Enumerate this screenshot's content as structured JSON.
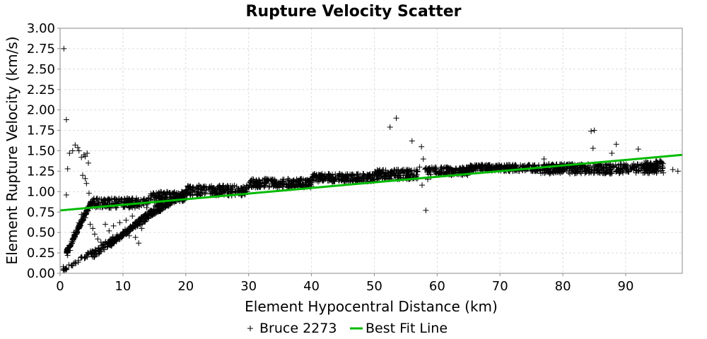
{
  "chart_data": {
    "type": "scatter",
    "title": "Rupture Velocity Scatter",
    "xlabel": "Element Hypocentral Distance (km)",
    "ylabel": "Element Rupture Velocity (km/s)",
    "xlim": [
      0,
      99
    ],
    "ylim": [
      0,
      3.0
    ],
    "x_ticks": [
      0,
      10,
      20,
      30,
      40,
      50,
      60,
      70,
      80,
      90
    ],
    "y_ticks": [
      0.0,
      0.25,
      0.5,
      0.75,
      1.0,
      1.25,
      1.5,
      1.75,
      2.0,
      2.25,
      2.5,
      2.75,
      3.0
    ],
    "x_tick_labels": [
      "0",
      "10",
      "20",
      "30",
      "40",
      "50",
      "60",
      "70",
      "80",
      "90"
    ],
    "y_tick_labels": [
      "0.00",
      "0.25",
      "0.50",
      "0.75",
      "1.00",
      "1.25",
      "1.50",
      "1.75",
      "2.00",
      "2.25",
      "2.50",
      "2.75",
      "3.00"
    ],
    "grid": true,
    "legend_position": "bottom",
    "series": [
      {
        "name": "Bruce 2273",
        "kind": "scatter",
        "marker": "plus",
        "color": "#000000",
        "points": [
          [
            0.6,
            2.75
          ],
          [
            1.0,
            1.88
          ],
          [
            1.2,
            1.28
          ],
          [
            1.0,
            0.96
          ],
          [
            0.5,
            0.08
          ],
          [
            1.0,
            0.05
          ],
          [
            1.5,
            1.47
          ],
          [
            2.0,
            1.5
          ],
          [
            2.4,
            1.57
          ],
          [
            2.8,
            1.54
          ],
          [
            3.0,
            1.5
          ],
          [
            3.4,
            1.42
          ],
          [
            3.8,
            1.45
          ],
          [
            4.0,
            1.43
          ],
          [
            4.3,
            1.47
          ],
          [
            4.5,
            1.35
          ],
          [
            3.6,
            1.2
          ],
          [
            4.0,
            1.16
          ],
          [
            4.2,
            1.1
          ],
          [
            4.6,
            0.98
          ],
          [
            2.2,
            0.5
          ],
          [
            2.6,
            0.48
          ],
          [
            1.6,
            0.28
          ],
          [
            1.2,
            0.22
          ],
          [
            3.0,
            0.62
          ],
          [
            3.4,
            0.72
          ],
          [
            4.0,
            0.68
          ],
          [
            4.8,
            0.6
          ],
          [
            5.2,
            0.55
          ],
          [
            5.5,
            0.48
          ],
          [
            6.0,
            0.42
          ],
          [
            6.5,
            0.38
          ],
          [
            7.0,
            0.35
          ],
          [
            8.0,
            0.4
          ],
          [
            9.0,
            0.45
          ],
          [
            10.0,
            0.5
          ],
          [
            11.0,
            0.46
          ],
          [
            12.0,
            0.44
          ],
          [
            12.5,
            0.37
          ],
          [
            13.0,
            0.55
          ],
          [
            7.2,
            0.6
          ],
          [
            7.8,
            0.52
          ],
          [
            8.5,
            0.58
          ],
          [
            9.5,
            0.62
          ],
          [
            10.5,
            0.65
          ],
          [
            11.5,
            0.7
          ],
          [
            12.5,
            0.66
          ],
          [
            52.5,
            1.79
          ],
          [
            53.5,
            1.9
          ],
          [
            56.0,
            1.62
          ],
          [
            57.5,
            1.55
          ],
          [
            58.2,
            0.77
          ],
          [
            57.8,
            1.4
          ],
          [
            57.2,
            1.3
          ],
          [
            58.5,
            1.15
          ],
          [
            59.0,
            1.18
          ],
          [
            57.6,
            1.08
          ],
          [
            77.0,
            1.4
          ],
          [
            84.5,
            1.74
          ],
          [
            85.0,
            1.75
          ],
          [
            84.8,
            1.53
          ],
          [
            87.8,
            1.47
          ],
          [
            88.5,
            1.58
          ],
          [
            92.0,
            1.52
          ],
          [
            97.5,
            1.27
          ],
          [
            98.3,
            1.25
          ],
          [
            96.0,
            1.23
          ],
          [
            95.0,
            1.3
          ]
        ],
        "bands": [
          {
            "x": [
              5,
              14
            ],
            "y": [
              0.8,
              0.92
            ]
          },
          {
            "x": [
              14,
              20
            ],
            "y": [
              0.88,
              1.0
            ]
          },
          {
            "x": [
              20,
              30
            ],
            "y": [
              0.95,
              1.08
            ]
          },
          {
            "x": [
              30,
              40
            ],
            "y": [
              1.05,
              1.16
            ]
          },
          {
            "x": [
              40,
              50
            ],
            "y": [
              1.12,
              1.22
            ]
          },
          {
            "x": [
              50,
              57
            ],
            "y": [
              1.15,
              1.27
            ]
          },
          {
            "x": [
              58,
              65
            ],
            "y": [
              1.2,
              1.3
            ]
          },
          {
            "x": [
              65,
              76
            ],
            "y": [
              1.25,
              1.33
            ]
          },
          {
            "x": [
              76,
              95
            ],
            "y": [
              1.22,
              1.34
            ]
          },
          {
            "x": [
              93,
              96
            ],
            "y": [
              1.25,
              1.38
            ]
          }
        ],
        "ramps": [
          {
            "x": [
              0.5,
              20
            ],
            "y": [
              0.04,
              0.98
            ]
          },
          {
            "x": [
              5,
              19
            ],
            "y": [
              0.2,
              0.95
            ]
          },
          {
            "x": [
              8,
              17
            ],
            "y": [
              0.35,
              0.92
            ]
          },
          {
            "x": [
              1.0,
              5.0
            ],
            "y": [
              0.25,
              0.88
            ]
          }
        ]
      },
      {
        "name": "Best Fit Line",
        "kind": "line",
        "color": "#00bb00",
        "x": [
          0,
          99
        ],
        "y": [
          0.77,
          1.45
        ]
      }
    ]
  }
}
